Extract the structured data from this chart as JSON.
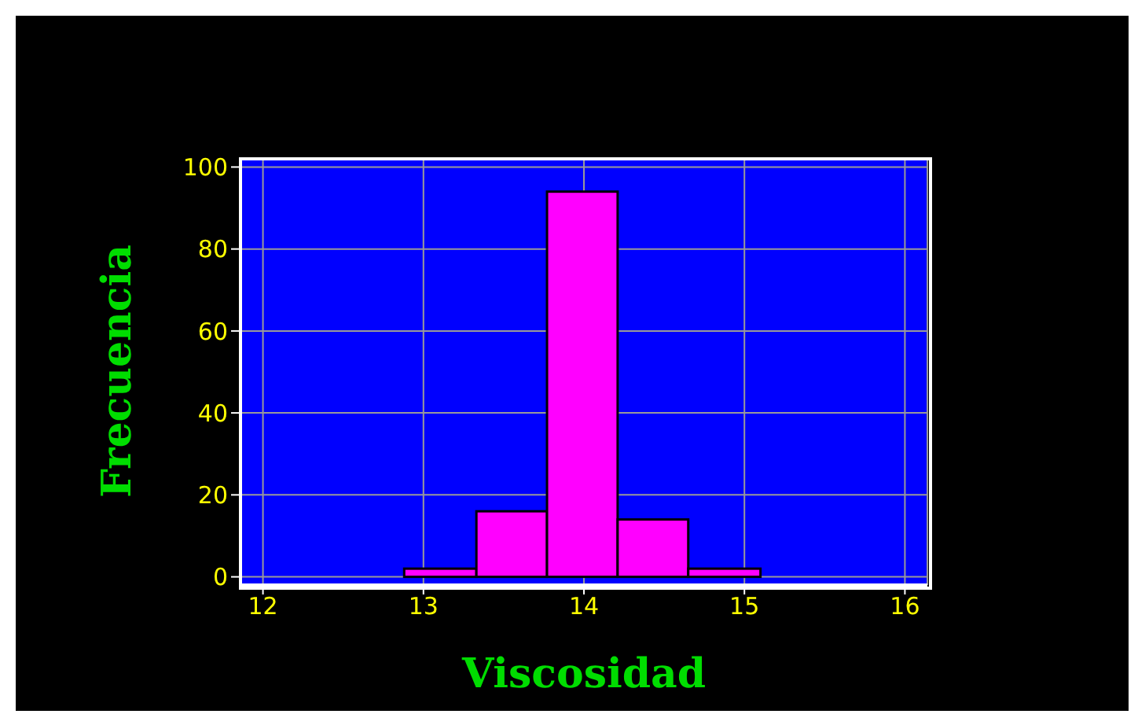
{
  "chart_data": {
    "type": "histogram",
    "xlabel": "Viscosidad",
    "ylabel": "Frecuencia",
    "bins": [
      12.88,
      13.33,
      13.77,
      14.21,
      14.65,
      15.1
    ],
    "values": [
      2,
      16,
      94,
      14,
      2
    ],
    "color": "#ff00ff",
    "xlim": [
      11.86,
      16.14
    ],
    "xticks": [
      12,
      13,
      14,
      15,
      16
    ],
    "ylim": [
      -2,
      102
    ],
    "yticks": [
      0,
      20,
      40,
      60,
      80,
      100
    ],
    "grid": true
  }
}
